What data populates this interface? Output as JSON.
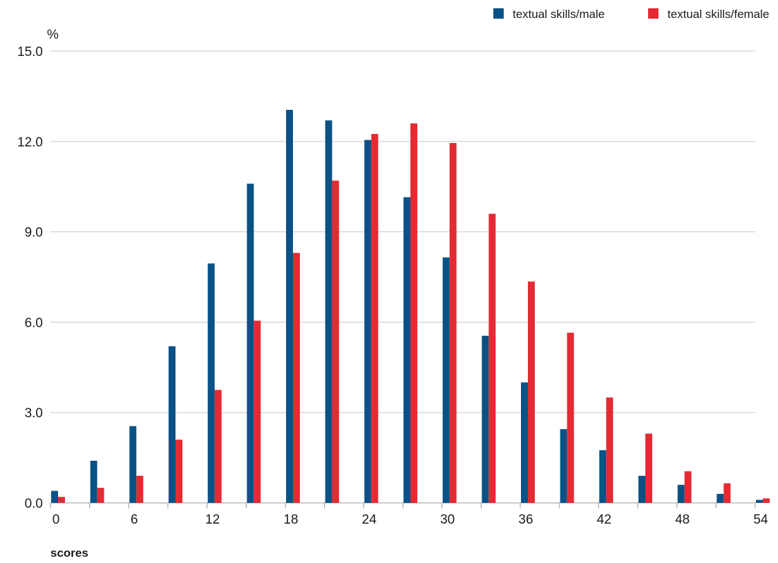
{
  "chart_data": {
    "type": "bar",
    "ylabel": "%",
    "xlabel": "scores",
    "ylim": [
      0,
      15
    ],
    "y_ticks": [
      "0.0",
      "3.0",
      "6.0",
      "9.0",
      "12.0",
      "15.0"
    ],
    "x_ticks": [
      "0",
      "6",
      "12",
      "18",
      "24",
      "30",
      "36",
      "42",
      "48",
      "54"
    ],
    "grid": "horizontal",
    "legend_position": "top-right",
    "categories": [
      "0",
      "3",
      "6",
      "9",
      "12",
      "15",
      "18",
      "21",
      "24",
      "27",
      "30",
      "33",
      "36",
      "39",
      "42",
      "45",
      "48",
      "51",
      "54"
    ],
    "series": [
      {
        "name": "textual skills/male",
        "color": "#0a5286",
        "values": [
          0.4,
          1.4,
          2.55,
          5.2,
          7.95,
          10.6,
          13.05,
          12.7,
          12.05,
          10.15,
          8.15,
          5.55,
          4.0,
          2.45,
          1.75,
          0.9,
          0.6,
          0.3,
          0.1
        ]
      },
      {
        "name": "textual skills/female",
        "color": "#e52a33",
        "values": [
          0.2,
          0.5,
          0.9,
          2.1,
          3.75,
          6.05,
          8.3,
          10.7,
          12.25,
          12.6,
          11.95,
          9.6,
          7.35,
          5.65,
          3.5,
          2.3,
          1.05,
          0.65,
          0.15
        ]
      }
    ]
  }
}
